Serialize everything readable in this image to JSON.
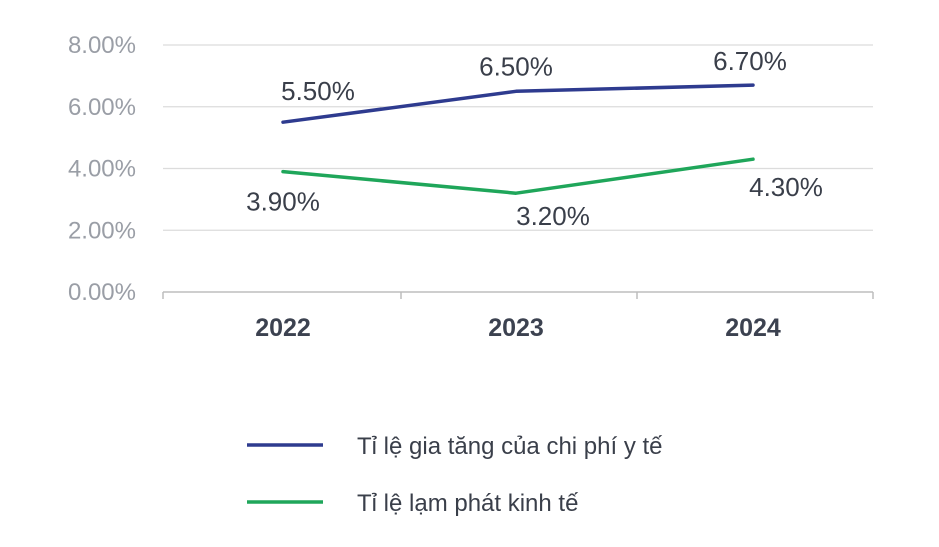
{
  "chart_data": {
    "type": "line",
    "categories": [
      "2022",
      "2023",
      "2024"
    ],
    "ylim": [
      0,
      8
    ],
    "yticks": [
      "0.00%",
      "2.00%",
      "4.00%",
      "6.00%",
      "8.00%"
    ],
    "grid": true,
    "legend_position": "bottom",
    "series": [
      {
        "name": "Tỉ lệ gia tăng của chi phí y tế",
        "values": [
          5.5,
          6.5,
          6.7
        ],
        "labels": [
          "5.50%",
          "6.50%",
          "6.70%"
        ],
        "color": "#2e3b8f"
      },
      {
        "name": "Tỉ lệ lạm phát kinh tế",
        "values": [
          3.9,
          3.2,
          4.3
        ],
        "labels": [
          "3.90%",
          "3.20%",
          "4.30%"
        ],
        "color": "#1fa65a"
      }
    ]
  }
}
